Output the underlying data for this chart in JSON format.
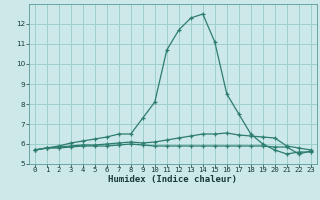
{
  "xlabel": "Humidex (Indice chaleur)",
  "x": [
    0,
    1,
    2,
    3,
    4,
    5,
    6,
    7,
    8,
    9,
    10,
    11,
    12,
    13,
    14,
    15,
    16,
    17,
    18,
    19,
    20,
    21,
    22,
    23
  ],
  "line1": [
    5.7,
    5.8,
    5.8,
    5.85,
    5.9,
    5.9,
    5.9,
    5.95,
    6.0,
    5.95,
    5.9,
    5.9,
    5.9,
    5.9,
    5.9,
    5.9,
    5.9,
    5.9,
    5.9,
    5.9,
    5.85,
    5.85,
    5.5,
    5.65
  ],
  "line2": [
    5.7,
    5.8,
    5.85,
    5.9,
    5.95,
    5.95,
    6.0,
    6.05,
    6.1,
    6.05,
    6.1,
    6.2,
    6.3,
    6.4,
    6.5,
    6.5,
    6.55,
    6.45,
    6.4,
    6.35,
    6.3,
    5.9,
    5.8,
    5.7
  ],
  "line3": [
    5.7,
    5.8,
    5.9,
    6.05,
    6.15,
    6.25,
    6.35,
    6.5,
    6.5,
    7.3,
    8.1,
    10.7,
    11.7,
    12.3,
    12.5,
    11.1,
    8.5,
    7.5,
    6.5,
    6.0,
    5.7,
    5.5,
    5.6,
    5.6
  ],
  "line_color": "#2d7d6e",
  "bg_color": "#cce8e8",
  "grid_color": "#9ecece",
  "ylim": [
    5,
    13
  ],
  "xlim": [
    -0.5,
    23.5
  ],
  "yticks": [
    5,
    6,
    7,
    8,
    9,
    10,
    11,
    12
  ],
  "xticks": [
    0,
    1,
    2,
    3,
    4,
    5,
    6,
    7,
    8,
    9,
    10,
    11,
    12,
    13,
    14,
    15,
    16,
    17,
    18,
    19,
    20,
    21,
    22,
    23
  ],
  "tick_fontsize": 5.2,
  "xlabel_fontsize": 6.5
}
